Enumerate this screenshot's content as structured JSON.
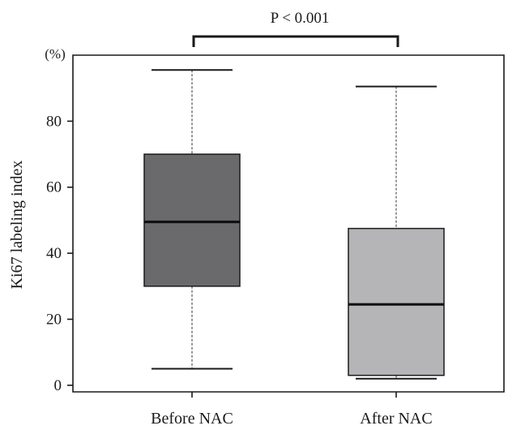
{
  "chart_data": {
    "type": "box",
    "categories": [
      "Before NAC",
      "After NAC"
    ],
    "series": [
      {
        "name": "Before NAC",
        "min": 5,
        "q1": 30,
        "median": 49.5,
        "q3": 70,
        "max": 95.5,
        "color": "#6a6a6c"
      },
      {
        "name": "After NAC",
        "min": 2,
        "q1": 3,
        "median": 24.5,
        "q3": 47.5,
        "max": 90.5,
        "color": "#b5b5b8"
      }
    ],
    "ylabel": "Ki67 labeling index",
    "yunit": "(%)",
    "ylim": [
      -2,
      100
    ],
    "yticks": [
      "0",
      "20",
      "40",
      "60",
      "80"
    ],
    "annotation": "P < 0.001"
  }
}
